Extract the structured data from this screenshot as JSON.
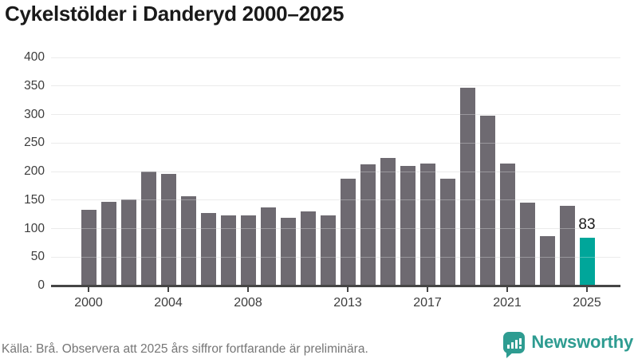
{
  "title": "Cykelstölder i Danderyd 2000–2025",
  "footer": {
    "source_note": "Källa: Brå. Observera att 2025 års siffror fortfarande är preliminära."
  },
  "logo": {
    "name": "Newsworthy",
    "icon": "bar-chart-speech-bubble-icon"
  },
  "colors": {
    "bar": "#6e6a71",
    "highlight": "#00a69a",
    "logo_teal": "#2e9c91",
    "grid": "#e3e3e3",
    "axis": "#454545",
    "title_text": "#1a1a1a",
    "tick_text": "#3d3d3d",
    "footer_text": "#767676",
    "background": "#ffffff"
  },
  "chart_data": {
    "type": "bar",
    "title": "Cykelstölder i Danderyd 2000–2025",
    "x": [
      2000,
      2001,
      2002,
      2003,
      2004,
      2005,
      2006,
      2007,
      2008,
      2009,
      2010,
      2011,
      2012,
      2013,
      2014,
      2015,
      2016,
      2017,
      2018,
      2019,
      2020,
      2021,
      2022,
      2023,
      2024,
      2025
    ],
    "values": [
      132,
      145,
      150,
      199,
      194,
      155,
      126,
      121,
      122,
      136,
      118,
      128,
      122,
      186,
      211,
      222,
      208,
      212,
      186,
      345,
      297,
      213,
      144,
      85,
      138,
      83
    ],
    "highlight": {
      "year": 2025,
      "value": 83,
      "label": "83"
    },
    "yticks": [
      0,
      50,
      100,
      150,
      200,
      250,
      300,
      350,
      400
    ],
    "xticks": [
      2000,
      2004,
      2008,
      2013,
      2017,
      2021,
      2025
    ],
    "ylim": [
      0,
      400
    ],
    "grid": true,
    "legend": false,
    "xlabel": "",
    "ylabel": "",
    "source": "Källa: Brå. Observera att 2025 års siffror fortfarande är preliminära."
  }
}
